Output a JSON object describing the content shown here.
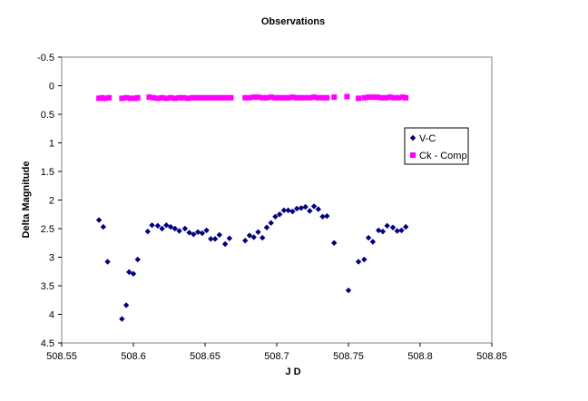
{
  "chart_data": {
    "type": "scatter",
    "title": "Observations",
    "xlabel": "J D",
    "ylabel": "Delta Magnitude",
    "xlim": [
      508.55,
      508.85
    ],
    "ylim": [
      -0.5,
      4.5
    ],
    "y_inverted": true,
    "x_ticks": [
      "508.55",
      "508.6",
      "508.65",
      "508.7",
      "508.75",
      "508.8",
      "508.85"
    ],
    "y_ticks": [
      "-0.5",
      "0",
      "0.5",
      "1",
      "1.5",
      "2",
      "2.5",
      "3",
      "3.5",
      "4",
      "4.5"
    ],
    "grid": false,
    "legend_position": "right",
    "series": [
      {
        "name": "V-C",
        "color": "#000080",
        "marker": "diamond",
        "x": [
          508.576,
          508.579,
          508.582,
          508.592,
          508.595,
          508.597,
          508.6,
          508.603,
          508.61,
          508.613,
          508.617,
          508.62,
          508.623,
          508.626,
          508.629,
          508.632,
          508.636,
          508.639,
          508.642,
          508.645,
          508.648,
          508.651,
          508.654,
          508.657,
          508.66,
          508.664,
          508.667,
          508.678,
          508.681,
          508.684,
          508.687,
          508.69,
          508.693,
          508.696,
          508.699,
          508.702,
          508.705,
          508.708,
          508.711,
          508.714,
          508.717,
          508.72,
          508.723,
          508.726,
          508.729,
          508.732,
          508.735,
          508.74,
          508.75,
          508.757,
          508.761,
          508.764,
          508.767,
          508.771,
          508.774,
          508.777,
          508.781,
          508.784,
          508.787,
          508.79
        ],
        "y": [
          2.35,
          2.47,
          3.08,
          4.08,
          3.84,
          3.26,
          3.29,
          3.04,
          2.55,
          2.44,
          2.45,
          2.5,
          2.44,
          2.47,
          2.5,
          2.54,
          2.5,
          2.57,
          2.6,
          2.56,
          2.58,
          2.53,
          2.68,
          2.68,
          2.61,
          2.77,
          2.67,
          2.71,
          2.62,
          2.65,
          2.56,
          2.66,
          2.48,
          2.4,
          2.29,
          2.25,
          2.18,
          2.18,
          2.2,
          2.15,
          2.14,
          2.12,
          2.19,
          2.11,
          2.16,
          2.29,
          2.28,
          2.75,
          3.58,
          3.08,
          3.04,
          2.66,
          2.73,
          2.53,
          2.55,
          2.45,
          2.48,
          2.54,
          2.53,
          2.47
        ]
      },
      {
        "name": "Ck - Comp",
        "color": "#FF00FF",
        "marker": "square",
        "x": [
          508.576,
          508.578,
          508.58,
          508.583,
          508.592,
          508.595,
          508.598,
          508.601,
          508.603,
          508.611,
          508.614,
          508.617,
          508.62,
          508.623,
          508.626,
          508.629,
          508.632,
          508.635,
          508.638,
          508.641,
          508.644,
          508.647,
          508.65,
          508.653,
          508.656,
          508.659,
          508.662,
          508.665,
          508.668,
          508.678,
          508.681,
          508.684,
          508.687,
          508.69,
          508.693,
          508.696,
          508.699,
          508.702,
          508.705,
          508.708,
          508.711,
          508.714,
          508.717,
          508.72,
          508.723,
          508.726,
          508.729,
          508.732,
          508.735,
          508.74,
          508.749,
          508.757,
          508.761,
          508.764,
          508.767,
          508.77,
          508.773,
          508.776,
          508.779,
          508.782,
          508.785,
          508.788,
          508.79
        ],
        "y": [
          0.22,
          0.21,
          0.22,
          0.21,
          0.22,
          0.21,
          0.22,
          0.22,
          0.21,
          0.2,
          0.21,
          0.22,
          0.21,
          0.22,
          0.21,
          0.22,
          0.21,
          0.21,
          0.22,
          0.21,
          0.21,
          0.21,
          0.21,
          0.21,
          0.21,
          0.21,
          0.21,
          0.21,
          0.21,
          0.21,
          0.21,
          0.2,
          0.2,
          0.21,
          0.21,
          0.2,
          0.21,
          0.21,
          0.21,
          0.21,
          0.2,
          0.21,
          0.21,
          0.21,
          0.21,
          0.2,
          0.21,
          0.21,
          0.21,
          0.2,
          0.19,
          0.22,
          0.21,
          0.2,
          0.2,
          0.2,
          0.21,
          0.21,
          0.2,
          0.21,
          0.21,
          0.2,
          0.21
        ]
      }
    ]
  }
}
